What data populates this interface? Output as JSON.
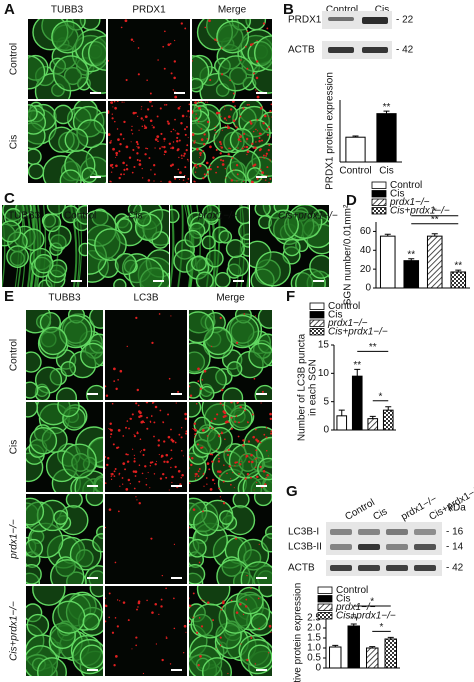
{
  "figure": {
    "A": {
      "letter": "A",
      "columns": [
        "TUBB3",
        "PRDX1",
        "Merge"
      ],
      "rows": [
        "Control",
        "Cis"
      ]
    },
    "B": {
      "letter": "B",
      "lanes": [
        "Control",
        "Cis"
      ],
      "bands": [
        "PRDX1",
        "ACTB"
      ],
      "markers": [
        "- 22",
        "- 42"
      ]
    },
    "C": {
      "letter": "C",
      "labels": [
        "TUBB3",
        "Control",
        "Cis",
        "prdx1−/−",
        "Cis+prdx1−/−"
      ]
    },
    "D": {
      "letter": "D"
    },
    "E": {
      "letter": "E",
      "columns": [
        "TUBB3",
        "LC3B",
        "Merge"
      ],
      "rows": [
        "Control",
        "Cis",
        "prdx1−/−",
        "Cis+prdx1−/−"
      ]
    },
    "F": {
      "letter": "F"
    },
    "G": {
      "letter": "G",
      "lanes": [
        "Control",
        "Cis",
        "prdx1−/−",
        "Cis+prdx1−/−"
      ],
      "unit": "kDa",
      "bands": [
        "LC3B-I",
        "LC3B-II",
        "ACTB"
      ],
      "markers": [
        "- 16",
        "- 14",
        "- 42"
      ]
    }
  },
  "chart_data": [
    {
      "type": "bar",
      "y_label": [
        "PRDX1 protein expression"
      ],
      "categories": [
        "Control",
        "Cis"
      ],
      "values": [
        1.0,
        1.95
      ],
      "errors": [
        0.05,
        0.1
      ],
      "colors": [
        "#ffffff",
        "#000000"
      ],
      "patterns": [
        "solid",
        "solid"
      ],
      "ylim": [
        0,
        2.5
      ],
      "legend": false,
      "annotations": [
        "**"
      ]
    },
    {
      "type": "bar",
      "y_label": [
        "SGN number/0.01mm²"
      ],
      "categories": [
        "Control",
        "Cis",
        "prdx1−/−",
        "Cis+prdx1−/−"
      ],
      "values": [
        55,
        29,
        55,
        17
      ],
      "errors": [
        2,
        2,
        2.5,
        2
      ],
      "colors": [
        "#ffffff",
        "#000000",
        "#ffffff",
        "#ffffff"
      ],
      "patterns": [
        "solid",
        "solid",
        "hatch",
        "checker"
      ],
      "ylim": [
        0,
        70
      ],
      "yticks": [
        0,
        20,
        40,
        60
      ],
      "legend": true,
      "annotations": [
        "**",
        "**",
        "*",
        "**"
      ]
    },
    {
      "type": "bar",
      "y_label": [
        "Number of LC3B puncta",
        "in each SGN"
      ],
      "categories": [
        "Control",
        "Cis",
        "prdx1−/−",
        "Cis+prdx1−/−"
      ],
      "values": [
        2.5,
        9.5,
        2,
        3.5
      ],
      "errors": [
        1,
        1.2,
        0.4,
        0.6
      ],
      "colors": [
        "#ffffff",
        "#000000",
        "#ffffff",
        "#ffffff"
      ],
      "patterns": [
        "solid",
        "solid",
        "hatch",
        "checker"
      ],
      "ylim": [
        0,
        15
      ],
      "yticks": [
        0,
        5,
        10,
        15
      ],
      "legend": true,
      "annotations": [
        "**",
        "**",
        "*"
      ]
    },
    {
      "type": "bar",
      "y_label": [
        "Relative protein expression"
      ],
      "categories": [
        "Control",
        "Cis",
        "prdx1−/−",
        "Cis+prdx1−/−"
      ],
      "values": [
        1.05,
        2.1,
        1.0,
        1.45
      ],
      "errors": [
        0.08,
        0.1,
        0.07,
        0.08
      ],
      "colors": [
        "#ffffff",
        "#000000",
        "#ffffff",
        "#ffffff"
      ],
      "patterns": [
        "solid",
        "solid",
        "hatch",
        "checker"
      ],
      "ylim": [
        0,
        2.5
      ],
      "yticks": [
        0,
        0.5,
        {
          "value": 1,
          "label": "1.0"
        },
        1.5,
        {
          "value": 2,
          "label": "2.0"
        },
        2.5
      ],
      "legend": true,
      "annotations": [
        "**",
        "*",
        "*"
      ]
    }
  ]
}
